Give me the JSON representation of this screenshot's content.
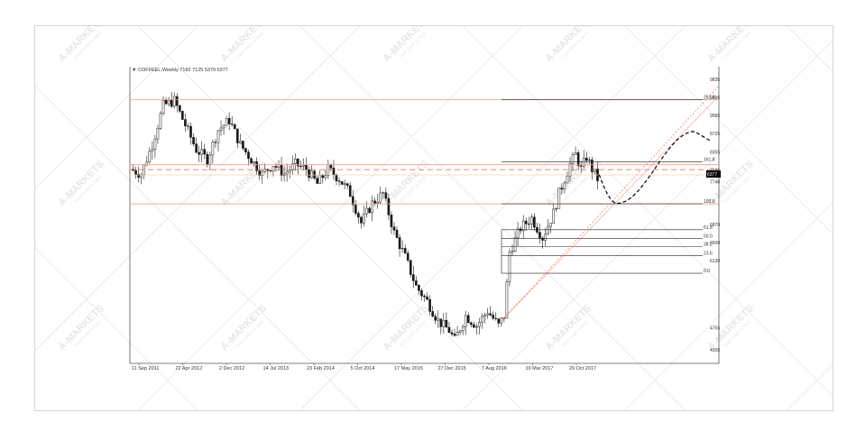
{
  "header": {
    "symbol": "▼ COFFEEL,Weekly 7182 7125 5379 6377"
  },
  "watermark": {
    "brand": "A-MARKETS",
    "tagline": "Your trade is here"
  },
  "colors": {
    "candle": "#1a1a1a",
    "level_red": "#f0a080",
    "dash_red": "#e06040",
    "fib": "#202020",
    "projection": "#000000",
    "price_tag_bg": "#000000",
    "price_tag_fg": "#ffffff"
  },
  "chart_data": {
    "type": "candlestick",
    "title": "",
    "symbol": "COFFEEL",
    "timeframe": "Weekly",
    "ylim": [
      4305,
      9835
    ],
    "y_ticks": [
      {
        "value": 9835,
        "label": "9835"
      },
      {
        "value": 9465,
        "label": "9465"
      },
      {
        "value": 9095,
        "label": "9095"
      },
      {
        "value": 8725,
        "label": "8725"
      },
      {
        "value": 8355,
        "label": "8355"
      },
      {
        "value": 7986,
        "label": "7986"
      },
      {
        "value": 7740,
        "label": "7740"
      },
      {
        "value": 6870,
        "label": "6870"
      },
      {
        "value": 6500,
        "label": "6500"
      },
      {
        "value": 6130,
        "label": "6130"
      },
      {
        "value": 4755,
        "label": "4755"
      },
      {
        "value": 4305,
        "label": "4305"
      }
    ],
    "x_ticks": [
      "11 Sep 2011",
      "22 Apr 2012",
      "2 Dec 2012",
      "14 Jul 2013",
      "23 Feb 2014",
      "5 Oct 2014",
      "17 May 2015",
      "27 Dec 2015",
      "7 Aug 2016",
      "19 Mar 2017",
      "29 Oct 2017"
    ],
    "current_price": "6377",
    "fibonacci_levels": [
      {
        "label": "261.8",
        "value": 9420
      },
      {
        "label": "161.8",
        "value": 8150
      },
      {
        "label": "100.0",
        "value": 7290
      },
      {
        "label": "61.8",
        "value": 6760
      },
      {
        "label": "50.0",
        "value": 6580
      },
      {
        "label": "38.2",
        "value": 6420
      },
      {
        "label": "23.6",
        "value": 6230
      },
      {
        "label": "0.0",
        "value": 5870
      }
    ],
    "horizontal_levels": [
      9420,
      8090,
      7290
    ],
    "dashed_level": 7990,
    "projection": "curve down to ~7300 then up to ~8750 and back to ~8650"
  }
}
